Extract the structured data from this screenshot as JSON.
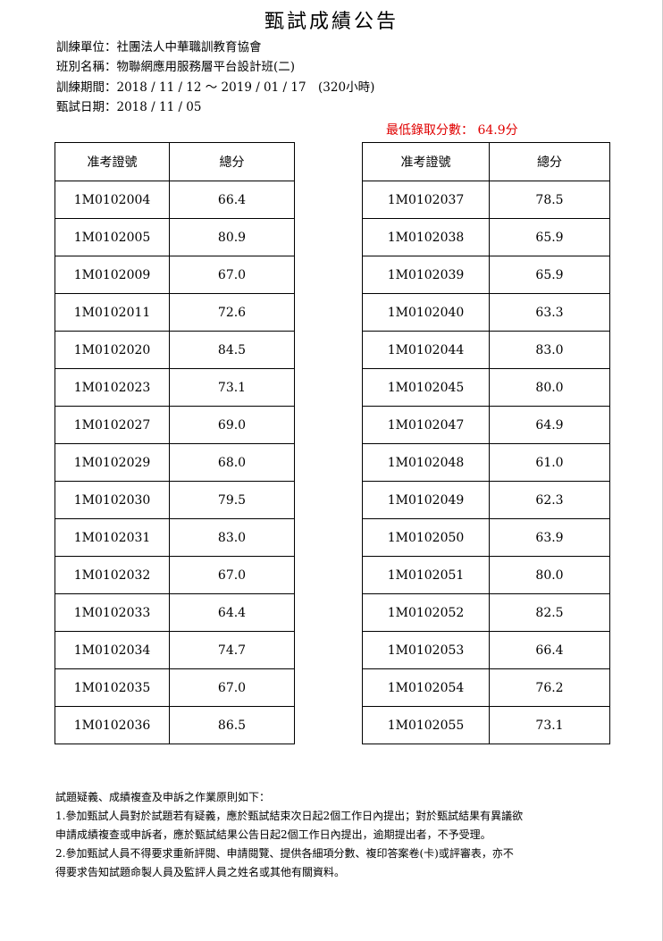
{
  "header": {
    "title": "甄試成績公告",
    "info": [
      "訓練單位：社團法人中華職訓教育協會",
      "班別名稱：物聯網應用服務層平台設計班(二)",
      "訓練期間：2018 / 11 / 12 ～ 2019 / 01 / 17　(320小時)",
      "甄試日期：2018 / 11 / 05"
    ],
    "min_score": "最低錄取分數： 64.9分"
  },
  "tables": [
    {
      "columns": [
        "准考證號",
        "總分"
      ],
      "rows": [
        [
          "1M0102004",
          "66.4"
        ],
        [
          "1M0102005",
          "80.9"
        ],
        [
          "1M0102009",
          "67.0"
        ],
        [
          "1M0102011",
          "72.6"
        ],
        [
          "1M0102020",
          "84.5"
        ],
        [
          "1M0102023",
          "73.1"
        ],
        [
          "1M0102027",
          "69.0"
        ],
        [
          "1M0102029",
          "68.0"
        ],
        [
          "1M0102030",
          "79.5"
        ],
        [
          "1M0102031",
          "83.0"
        ],
        [
          "1M0102032",
          "67.0"
        ],
        [
          "1M0102033",
          "64.4"
        ],
        [
          "1M0102034",
          "74.7"
        ],
        [
          "1M0102035",
          "67.0"
        ],
        [
          "1M0102036",
          "86.5"
        ]
      ]
    },
    {
      "columns": [
        "准考證號",
        "總分"
      ],
      "rows": [
        [
          "1M0102037",
          "78.5"
        ],
        [
          "1M0102038",
          "65.9"
        ],
        [
          "1M0102039",
          "65.9"
        ],
        [
          "1M0102040",
          "63.3"
        ],
        [
          "1M0102044",
          "83.0"
        ],
        [
          "1M0102045",
          "80.0"
        ],
        [
          "1M0102047",
          "64.9"
        ],
        [
          "1M0102048",
          "61.0"
        ],
        [
          "1M0102049",
          "62.3"
        ],
        [
          "1M0102050",
          "63.9"
        ],
        [
          "1M0102051",
          "80.0"
        ],
        [
          "1M0102052",
          "82.5"
        ],
        [
          "1M0102053",
          "66.4"
        ],
        [
          "1M0102054",
          "76.2"
        ],
        [
          "1M0102055",
          "73.1"
        ]
      ]
    }
  ],
  "notes": [
    "試題疑義、成績複查及申訴之作業原則如下：",
    "1.參加甄試人員對於試題若有疑義，應於甄試結束次日起2個工作日內提出；對於甄試結果有異議欲",
    "申請成績複查或申訴者，應於甄試結果公告日起2個工作日內提出，逾期提出者，不予受理。",
    "2.參加甄試人員不得要求重新評閱、申請閱覽、提供各細項分數、複印答案卷(卡)或評審表，亦不",
    "得要求告知試題命製人員及監評人員之姓名或其他有關資料。"
  ]
}
